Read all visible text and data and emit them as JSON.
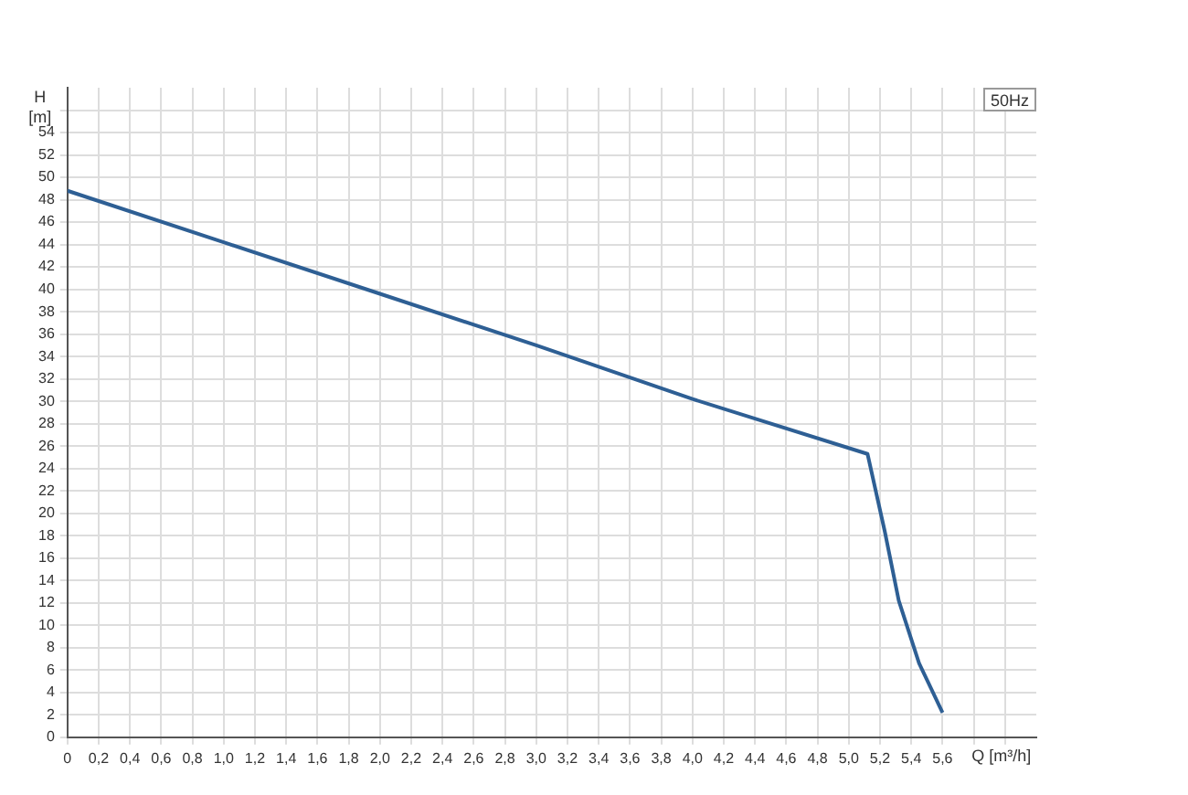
{
  "chart_data": {
    "type": "line",
    "xlabel": "Q [m³/h]",
    "ylabel": "H [m]",
    "annotations": [
      "50Hz"
    ],
    "x": [
      0,
      1,
      2,
      3,
      4,
      5.12,
      5.23,
      5.32,
      5.45,
      5.6
    ],
    "series": [
      {
        "color": "#2e5f94",
        "values": [
          48.8,
          44.2,
          39.6,
          35.0,
          30.2,
          25.3,
          18.4,
          12.2,
          6.6,
          2.2
        ]
      }
    ],
    "xlim": [
      0,
      6.2
    ],
    "ylim": [
      0,
      58
    ],
    "grid": true,
    "legend": false,
    "marker": "none",
    "line_style": "solid",
    "xticks": [
      0,
      {
        "value": 0.2,
        "label": "0,2"
      },
      {
        "value": 0.4,
        "label": "0,4"
      },
      {
        "value": 0.6,
        "label": "0,6"
      },
      {
        "value": 0.8,
        "label": "0,8"
      },
      {
        "value": 1.0,
        "label": "1,0"
      },
      {
        "value": 1.2,
        "label": "1,2"
      },
      {
        "value": 1.4,
        "label": "1,4"
      },
      {
        "value": 1.6,
        "label": "1,6"
      },
      {
        "value": 1.8,
        "label": "1,8"
      },
      {
        "value": 2.0,
        "label": "2,0"
      },
      {
        "value": 2.2,
        "label": "2,2"
      },
      {
        "value": 2.4,
        "label": "2,4"
      },
      {
        "value": 2.6,
        "label": "2,6"
      },
      {
        "value": 2.8,
        "label": "2,8"
      },
      {
        "value": 3.0,
        "label": "3,0"
      },
      {
        "value": 3.2,
        "label": "3,2"
      },
      {
        "value": 3.4,
        "label": "3,4"
      },
      {
        "value": 3.6,
        "label": "3,6"
      },
      {
        "value": 3.8,
        "label": "3,8"
      },
      {
        "value": 4.0,
        "label": "4,0"
      },
      {
        "value": 4.2,
        "label": "4,2"
      },
      {
        "value": 4.4,
        "label": "4,4"
      },
      {
        "value": 4.6,
        "label": "4,6"
      },
      {
        "value": 4.8,
        "label": "4,8"
      },
      {
        "value": 5.0,
        "label": "5,0"
      },
      {
        "value": 5.2,
        "label": "5,2"
      },
      {
        "value": 5.4,
        "label": "5,4"
      },
      {
        "value": 5.6,
        "label": "5,6"
      },
      {
        "value": 5.8,
        "label": null
      },
      {
        "value": 6.0,
        "label": null
      }
    ],
    "yticks": [
      0,
      2,
      4,
      6,
      8,
      10,
      12,
      14,
      16,
      18,
      20,
      22,
      24,
      26,
      28,
      30,
      32,
      34,
      36,
      38,
      40,
      42,
      44,
      46,
      48,
      50,
      52,
      54,
      {
        "value": 56,
        "label": null
      }
    ]
  }
}
